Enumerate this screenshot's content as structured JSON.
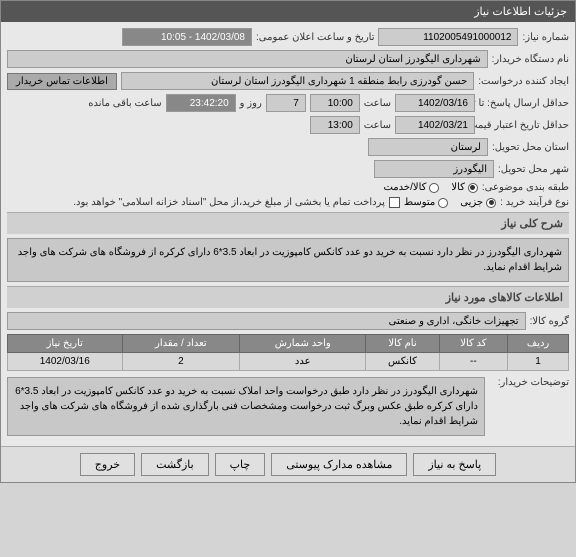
{
  "header": {
    "title": "جزئیات اطلاعات نیاز"
  },
  "fields": {
    "request_no_label": "شماره نیاز:",
    "request_no": "1102005491000012",
    "announce_label": "تاریخ و ساعت اعلان عمومی:",
    "announce_value": "1402/03/08 - 10:05",
    "buyer_org_label": "نام دستگاه خریدار:",
    "buyer_org": "شهرداری الیگودرز استان لرستان",
    "creator_label": "ایجاد کننده درخواست:",
    "creator": "حسن گودرزی رابط منطقه 1 شهرداری الیگودرز استان لرستان",
    "contact_btn": "اطلاعات تماس خریدار",
    "deadline_label": "حداقل ارسال پاسخ: تا تاریخ:",
    "deadline_date": "1402/03/16",
    "deadline_time_label": "ساعت",
    "deadline_time": "10:00",
    "deadline_days": "7",
    "days_label": "روز و",
    "countdown": "23:42:20",
    "remaining_label": "ساعت باقی مانده",
    "validity_label": "حداقل تاریخ اعتبار قیمت تا تاریخ:",
    "validity_date": "1402/03/21",
    "validity_time": "13:00",
    "province_label": "استان محل تحویل:",
    "province": "لرستان",
    "city_label": "شهر محل تحویل:",
    "city": "الیگودرز",
    "category_label": "طبقه بندی موضوعی:",
    "cat_goods": "کالا",
    "cat_service": "کالا/خدمت",
    "purchase_type_label": "نوع فرآیند خرید :",
    "pt_partial": "جزیی",
    "pt_medium": "متوسط",
    "payment_note": "پرداخت تمام یا بخشی از مبلغ خرید،از محل \"اسناد خزانه اسلامی\" خواهد بود.",
    "desc_title": "شرح کلی نیاز",
    "desc_text": "شهرداری الیگودرز در نظر دارد نسبت به خرید دو عدد کانکس کامپوزیت در ابعاد 3.5*6 دارای کرکره از فروشگاه های شرکت های واجد شرایط اقدام نماید.",
    "items_title": "اطلاعات کالاهای مورد نیاز",
    "group_label": "گروه کالا:",
    "group_value": "تجهیزات خانگی، اداری و صنعتی",
    "buyer_notes_label": "توضیحات خریدار:",
    "buyer_notes": "شهرداری الیگودرز در نظر دارد طبق درخواست واحد املاک  نسبت به خرید دو عدد کانکس کامپوزیت در ابعاد 3.5*6 دارای کرکره طبق عکس وبرگ ثبت درخواست ومشخصات فنی بارگذاری شده از فروشگاه های شرکت های واجد شرایط اقدام نماید."
  },
  "table": {
    "headers": [
      "ردیف",
      "کد کالا",
      "نام کالا",
      "واحد شمارش",
      "تعداد / مقدار",
      "تاریخ نیاز"
    ],
    "rows": [
      [
        "1",
        "--",
        "کانکس",
        "عدد",
        "2",
        "1402/03/16"
      ]
    ]
  },
  "footer": {
    "respond": "پاسخ به نیاز",
    "attachments": "مشاهده مدارک پیوستی",
    "print": "چاپ",
    "back": "بازگشت",
    "exit": "خروج"
  }
}
